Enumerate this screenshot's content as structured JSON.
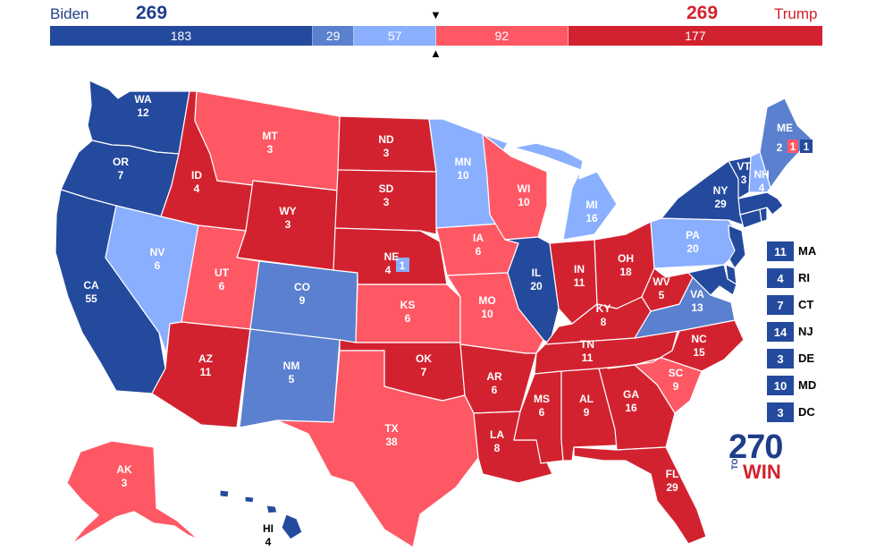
{
  "header": {
    "left_name": "Biden",
    "left_total": "269",
    "right_name": "Trump",
    "right_total": "269",
    "left_color": "#1f3e8a",
    "right_color": "#d3222f"
  },
  "bar_segments": [
    {
      "value": 183,
      "label": "183",
      "color": "#244a9e"
    },
    {
      "value": 29,
      "label": "29",
      "color": "#5a80cf"
    },
    {
      "value": 57,
      "label": "57",
      "color": "#8aafff"
    },
    {
      "value": 92,
      "label": "92",
      "color": "#ff5865"
    },
    {
      "value": 177,
      "label": "177",
      "color": "#d3222f"
    }
  ],
  "colors": {
    "safe_dem": "#244a9e",
    "likely_dem": "#5a80cf",
    "lean_dem": "#8aafff",
    "lean_rep": "#ff5865",
    "likely_rep": "#d3222f"
  },
  "states": {
    "WA": {
      "abbr": "WA",
      "ev": "12"
    },
    "OR": {
      "abbr": "OR",
      "ev": "7"
    },
    "CA": {
      "abbr": "CA",
      "ev": "55"
    },
    "NV": {
      "abbr": "NV",
      "ev": "6"
    },
    "ID": {
      "abbr": "ID",
      "ev": "4"
    },
    "MT": {
      "abbr": "MT",
      "ev": "3"
    },
    "WY": {
      "abbr": "WY",
      "ev": "3"
    },
    "UT": {
      "abbr": "UT",
      "ev": "6"
    },
    "AZ": {
      "abbr": "AZ",
      "ev": "11"
    },
    "CO": {
      "abbr": "CO",
      "ev": "9"
    },
    "NM": {
      "abbr": "NM",
      "ev": "5"
    },
    "ND": {
      "abbr": "ND",
      "ev": "3"
    },
    "SD": {
      "abbr": "SD",
      "ev": "3"
    },
    "NE": {
      "abbr": "NE",
      "ev": "4"
    },
    "KS": {
      "abbr": "KS",
      "ev": "6"
    },
    "OK": {
      "abbr": "OK",
      "ev": "7"
    },
    "TX": {
      "abbr": "TX",
      "ev": "38"
    },
    "MN": {
      "abbr": "MN",
      "ev": "10"
    },
    "IA": {
      "abbr": "IA",
      "ev": "6"
    },
    "MO": {
      "abbr": "MO",
      "ev": "10"
    },
    "AR": {
      "abbr": "AR",
      "ev": "6"
    },
    "LA": {
      "abbr": "LA",
      "ev": "8"
    },
    "WI": {
      "abbr": "WI",
      "ev": "10"
    },
    "IL": {
      "abbr": "IL",
      "ev": "20"
    },
    "MI": {
      "abbr": "MI",
      "ev": "16"
    },
    "IN": {
      "abbr": "IN",
      "ev": "11"
    },
    "OH": {
      "abbr": "OH",
      "ev": "18"
    },
    "KY": {
      "abbr": "KY",
      "ev": "8"
    },
    "TN": {
      "abbr": "TN",
      "ev": "11"
    },
    "MS": {
      "abbr": "MS",
      "ev": "6"
    },
    "AL": {
      "abbr": "AL",
      "ev": "9"
    },
    "GA": {
      "abbr": "GA",
      "ev": "16"
    },
    "FL": {
      "abbr": "FL",
      "ev": "29"
    },
    "SC": {
      "abbr": "SC",
      "ev": "9"
    },
    "NC": {
      "abbr": "NC",
      "ev": "15"
    },
    "VA": {
      "abbr": "VA",
      "ev": "13"
    },
    "WV": {
      "abbr": "WV",
      "ev": "5"
    },
    "PA": {
      "abbr": "PA",
      "ev": "20"
    },
    "NY": {
      "abbr": "NY",
      "ev": "29"
    },
    "VT": {
      "abbr": "VT",
      "ev": "3"
    },
    "NH": {
      "abbr": "NH",
      "ev": "4"
    },
    "ME": {
      "abbr": "ME",
      "ev": "2"
    },
    "AK": {
      "abbr": "AK",
      "ev": "3"
    },
    "HI": {
      "abbr": "HI",
      "ev": "4"
    }
  },
  "me_districts": {
    "d1": "1",
    "d2": "1"
  },
  "ne_district": "1",
  "small_states": [
    {
      "ev": "11",
      "abbr": "MA"
    },
    {
      "ev": "4",
      "abbr": "RI"
    },
    {
      "ev": "7",
      "abbr": "CT"
    },
    {
      "ev": "14",
      "abbr": "NJ"
    },
    {
      "ev": "3",
      "abbr": "DE"
    },
    {
      "ev": "10",
      "abbr": "MD"
    },
    {
      "ev": "3",
      "abbr": "DC"
    }
  ],
  "logo": {
    "number": "270",
    "to": "TO",
    "win": "WIN"
  }
}
